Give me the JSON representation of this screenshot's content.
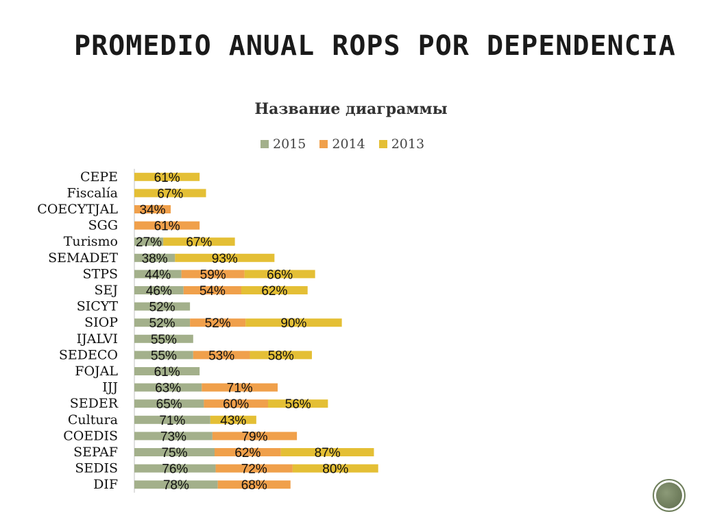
{
  "page": {
    "title": "PROMEDIO ANUAL ROPS POR DEPENDENCIA"
  },
  "colors": {
    "2015": "#a3b08b",
    "2014": "#f0a04b",
    "2013": "#e4bf35"
  },
  "chart_data": {
    "type": "bar",
    "orientation": "horizontal",
    "stacked": true,
    "title": "Название диаграммы",
    "legend_position": "top",
    "grid": false,
    "value_unit": "%",
    "categories": [
      "CEPE",
      "Fiscalía",
      "COECYTJAL",
      "SGG",
      "Turismo",
      "SEMADET",
      "STPS",
      "SEJ",
      "SICYT",
      "SIOP",
      "IJALVI",
      "SEDECO",
      "FOJAL",
      "IJJ",
      "SEDER",
      "Cultura",
      "COEDIS",
      "SEPAF",
      "SEDIS",
      "DIF"
    ],
    "series": [
      {
        "name": "2015",
        "values": [
          null,
          null,
          null,
          null,
          27,
          38,
          44,
          46,
          52,
          52,
          55,
          55,
          61,
          63,
          65,
          71,
          73,
          75,
          76,
          78
        ]
      },
      {
        "name": "2014",
        "values": [
          null,
          null,
          34,
          61,
          null,
          null,
          59,
          54,
          null,
          52,
          null,
          53,
          null,
          71,
          60,
          null,
          79,
          62,
          72,
          68
        ]
      },
      {
        "name": "2013",
        "values": [
          61,
          67,
          null,
          null,
          67,
          93,
          66,
          62,
          null,
          90,
          null,
          58,
          null,
          null,
          56,
          43,
          null,
          87,
          80,
          null
        ]
      }
    ]
  }
}
